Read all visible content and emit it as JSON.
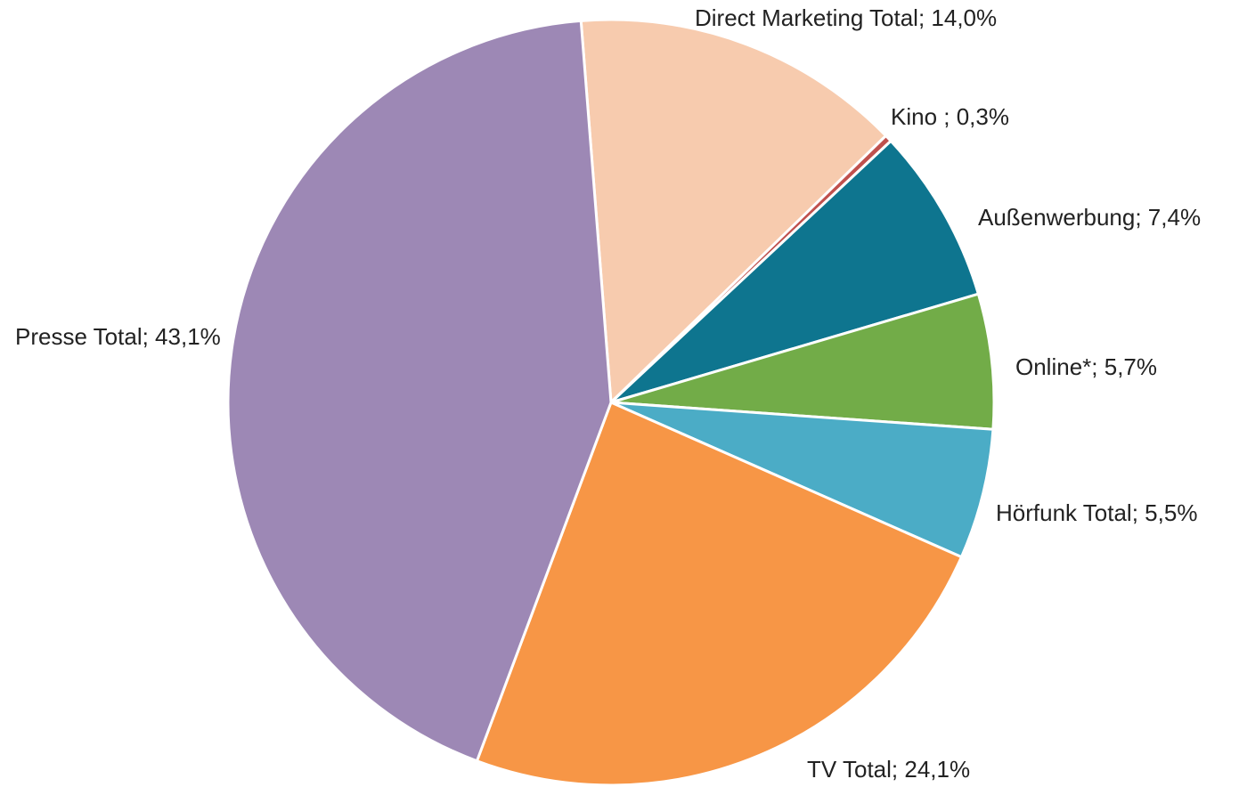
{
  "chart_data": {
    "type": "pie",
    "categories": [
      "Direct Marketing Total",
      "Kino ",
      "Außenwerbung",
      "Online*",
      "Hörfunk Total",
      "TV Total",
      "Presse Total"
    ],
    "values": [
      14.0,
      0.3,
      7.4,
      5.7,
      5.5,
      24.1,
      43.1
    ],
    "value_labels": [
      "14,0%",
      "0,3%",
      "7,4%",
      "5,7%",
      "5,5%",
      "24,1%",
      "43,1%"
    ],
    "colors": [
      "#f7cbae",
      "#c0504d",
      "#0e758f",
      "#72ac48",
      "#4bacc6",
      "#f79646",
      "#9d88b5"
    ]
  }
}
